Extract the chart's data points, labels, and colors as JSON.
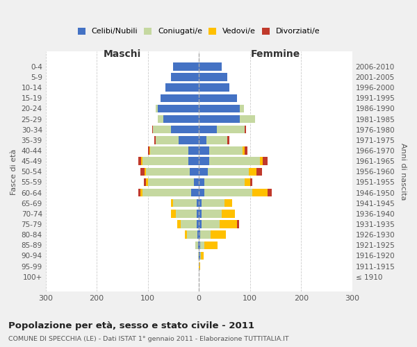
{
  "age_groups": [
    "100+",
    "95-99",
    "90-94",
    "85-89",
    "80-84",
    "75-79",
    "70-74",
    "65-69",
    "60-64",
    "55-59",
    "50-54",
    "45-49",
    "40-44",
    "35-39",
    "30-34",
    "25-29",
    "20-24",
    "15-19",
    "10-14",
    "5-9",
    "0-4"
  ],
  "birth_years": [
    "≤ 1910",
    "1911-1915",
    "1916-1920",
    "1921-1925",
    "1926-1930",
    "1931-1935",
    "1936-1940",
    "1941-1945",
    "1946-1950",
    "1951-1955",
    "1956-1960",
    "1961-1965",
    "1966-1970",
    "1971-1975",
    "1976-1980",
    "1981-1985",
    "1986-1990",
    "1991-1995",
    "1996-2000",
    "2001-2005",
    "2006-2010"
  ],
  "colors": {
    "celibi": "#4472c4",
    "coniugati": "#c5d8a0",
    "vedovi": "#ffc000",
    "divorziati": "#c0392b"
  },
  "males": {
    "celibi": [
      0,
      0,
      0,
      2,
      3,
      5,
      5,
      5,
      15,
      10,
      18,
      20,
      20,
      40,
      55,
      70,
      80,
      75,
      65,
      55,
      50
    ],
    "coniugati": [
      0,
      0,
      1,
      5,
      20,
      30,
      40,
      45,
      95,
      90,
      85,
      90,
      75,
      45,
      35,
      10,
      5,
      0,
      0,
      0,
      0
    ],
    "vedovi": [
      0,
      0,
      0,
      0,
      5,
      8,
      10,
      5,
      5,
      3,
      3,
      3,
      2,
      0,
      0,
      0,
      0,
      0,
      0,
      0,
      0
    ],
    "divorziati": [
      0,
      0,
      0,
      0,
      0,
      0,
      0,
      0,
      3,
      5,
      8,
      5,
      2,
      2,
      2,
      0,
      0,
      0,
      0,
      0,
      0
    ]
  },
  "females": {
    "celibi": [
      0,
      0,
      2,
      3,
      3,
      5,
      5,
      5,
      10,
      10,
      18,
      20,
      20,
      15,
      35,
      80,
      80,
      75,
      60,
      55,
      45
    ],
    "coniugati": [
      0,
      0,
      2,
      8,
      20,
      35,
      40,
      45,
      95,
      80,
      80,
      100,
      65,
      40,
      55,
      30,
      8,
      0,
      0,
      0,
      0
    ],
    "vedovi": [
      0,
      2,
      5,
      25,
      30,
      35,
      25,
      15,
      30,
      10,
      15,
      5,
      5,
      0,
      0,
      0,
      0,
      0,
      0,
      0,
      0
    ],
    "divorziati": [
      0,
      0,
      0,
      0,
      0,
      3,
      0,
      0,
      8,
      5,
      10,
      10,
      5,
      5,
      2,
      0,
      0,
      0,
      0,
      0,
      0
    ]
  },
  "title": "Popolazione per età, sesso e stato civile - 2011",
  "subtitle": "COMUNE DI SPECCHIA (LE) - Dati ISTAT 1° gennaio 2011 - Elaborazione TUTTITALIA.IT",
  "xlabel_left": "Maschi",
  "xlabel_right": "Femmine",
  "ylabel_left": "Fasce di età",
  "ylabel_right": "Anni di nascita",
  "xlim": 300,
  "background_color": "#f0f0f0",
  "plot_bg_color": "#ffffff",
  "grid_color": "#cccccc",
  "legend_labels": [
    "Celibi/Nubili",
    "Coniugati/e",
    "Vedovi/e",
    "Divorziati/e"
  ]
}
